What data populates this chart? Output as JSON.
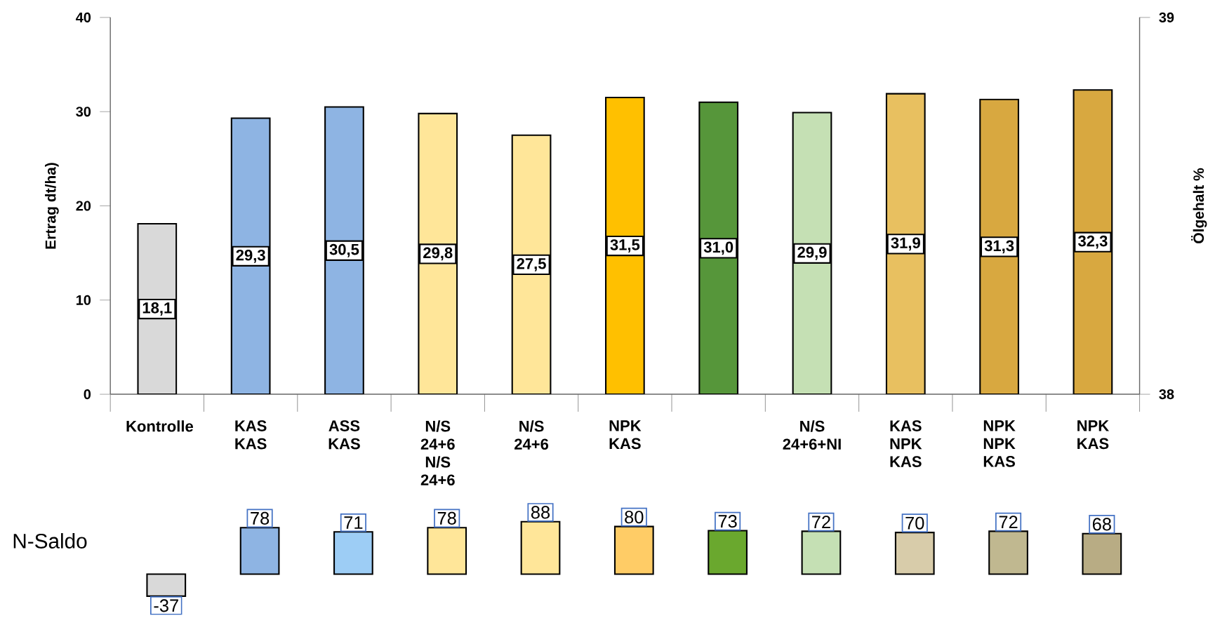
{
  "chart_data": [
    {
      "type": "bar",
      "ylabel": "Ertrag dt/ha)",
      "y2label": "Ölgehalt %",
      "categories": [
        "Kontrolle",
        "KAS KAS",
        "ASS KAS",
        "N/S 24+6 N/S 24+6",
        "N/S 24+6",
        "NPK KAS",
        null,
        "N/S 24+6+NI",
        "KAS NPK KAS",
        "NPK NPK KAS",
        "NPK KAS"
      ],
      "values": [
        18.1,
        29.3,
        30.5,
        29.8,
        27.5,
        31.5,
        31.0,
        29.9,
        31.9,
        31.3,
        32.3
      ],
      "value_labels": [
        "18,1",
        "29,3",
        "30,5",
        "29,8",
        "27,5",
        "31,5",
        "31,0",
        "29,9",
        "31,9",
        "31,3",
        "32,3"
      ],
      "colors": [
        "#d9d9d9",
        "#8eb4e3",
        "#8eb4e3",
        "#ffe699",
        "#ffe699",
        "#ffc000",
        "#56963a",
        "#c5e0b4",
        "#e8c060",
        "#d8a840",
        "#d8a840"
      ],
      "ylim": [
        0,
        40
      ],
      "yticks": [
        0,
        10,
        20,
        30,
        40
      ],
      "y2lim": [
        38,
        39
      ],
      "y2ticks": [
        38,
        39
      ],
      "grid": false
    },
    {
      "type": "bar",
      "ylabel": "N-Saldo",
      "categories": [
        null,
        null,
        null,
        null,
        null,
        null,
        null,
        null,
        null,
        null,
        null
      ],
      "values": [
        -37,
        78,
        71,
        78,
        88,
        80,
        73,
        72,
        70,
        72,
        68
      ],
      "value_labels": [
        "-37",
        "78",
        "71",
        "78",
        "88",
        "80",
        "73",
        "72",
        "70",
        "72",
        "68"
      ],
      "colors": [
        "#d9d9d9",
        "#8eb4e3",
        "#9dcdf5",
        "#ffe699",
        "#ffe699",
        "#ffcc66",
        "#6aa82e",
        "#c5e0b4",
        "#d8ccaa",
        "#c0b890",
        "#b8ac84"
      ]
    }
  ]
}
